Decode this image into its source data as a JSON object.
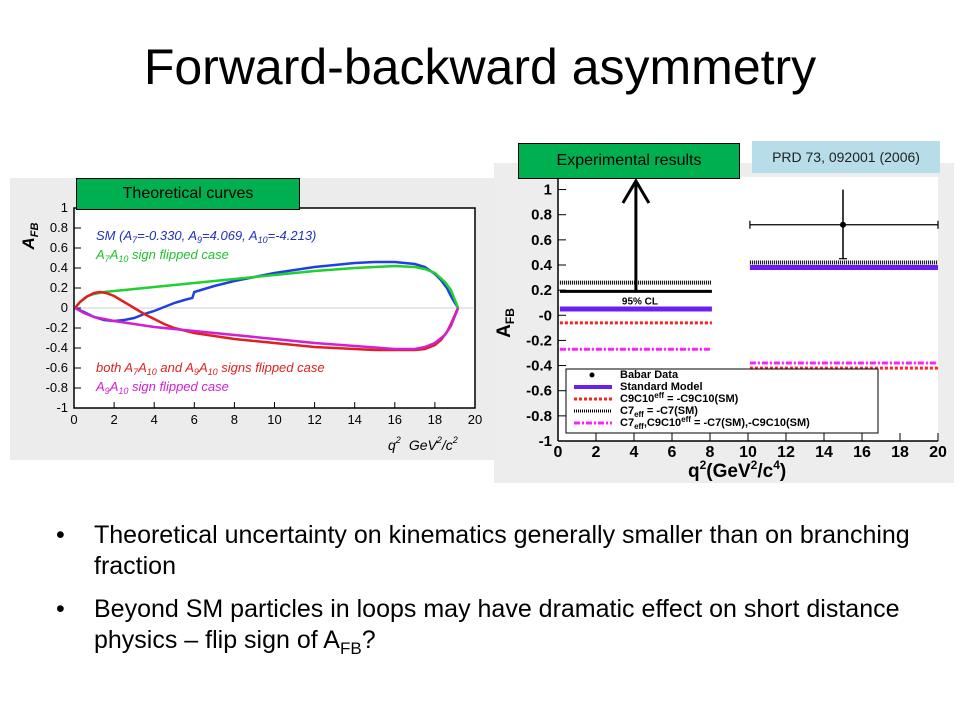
{
  "slide": {
    "title": "Forward-backward asymmetry",
    "label_theoretical": "Theoretical curves",
    "label_experimental": "Experimental results",
    "reference": "PRD 73, 092001 (2006)",
    "bullets": [
      {
        "text": "Theoretical uncertainty on kinematics generally smaller than on branching fraction"
      },
      {
        "text_before_sub": "Beyond SM particles in loops may have dramatic effect on short distance physics – flip sign of A",
        "sub": "FB",
        "text_after_sub": "?"
      }
    ]
  },
  "chart_data": [
    {
      "type": "line",
      "ylabel_main": "A",
      "ylabel_sub": "FB",
      "xlabel_main": "q",
      "xlabel_sup": "2",
      "xlabel_unit_main": "GeV",
      "xlabel_unit_sup": "2",
      "xlabel_unit_tail": "/c",
      "xlabel_unit_sup2": "2",
      "xlim": [
        0,
        20
      ],
      "ylim": [
        -1,
        1
      ],
      "xticks": [
        "0",
        "2",
        "4",
        "6",
        "8",
        "10",
        "12",
        "14",
        "16",
        "18",
        "20"
      ],
      "yticks": [
        "-1",
        "-0.8",
        "-0.6",
        "-0.4",
        "-0.2",
        "0",
        "0.2",
        "0.4",
        "0.6",
        "0.8",
        "1"
      ],
      "legend_top": {
        "sm": {
          "base": "SM (A",
          "a7sub": "7",
          "a7val": "=-0.330, A",
          "a9sub": "9",
          "a9val": "=4.069, A",
          "a10sub": "10",
          "a10val": "=-4.213)"
        },
        "green": {
          "a": "A",
          "s1": "7",
          "mid": "A",
          "s2": "10",
          "tail": " sign flipped case"
        }
      },
      "legend_bottom": {
        "red_line1": {
          "p1": "both A",
          "s1": "7",
          "p2": "A",
          "s2": "10",
          "p3": " and A",
          "s3": "9",
          "p4": "A",
          "s4": "10",
          "p5": " signs flipped case"
        },
        "magenta": {
          "a": "A",
          "s1": "9",
          "mid": "A",
          "s2": "10",
          "tail": " sign flipped case"
        }
      },
      "series": [
        {
          "color": "#2040e0",
          "x": [
            0.05,
            0.5,
            1,
            1.5,
            2,
            2.5,
            3,
            3.5,
            4,
            4.5,
            5,
            5.5,
            5.9,
            6,
            6.5,
            7,
            8,
            9,
            10,
            11,
            12,
            13,
            14,
            15,
            16,
            17,
            17.5,
            18,
            18.3,
            18.6,
            18.8,
            19.0,
            19.1,
            19.15
          ],
          "y": [
            0,
            -0.04,
            -0.09,
            -0.12,
            -0.13,
            -0.12,
            -0.1,
            -0.06,
            -0.03,
            0.01,
            0.05,
            0.08,
            0.1,
            0.16,
            0.19,
            0.22,
            0.27,
            0.31,
            0.35,
            0.38,
            0.41,
            0.43,
            0.45,
            0.46,
            0.46,
            0.44,
            0.41,
            0.34,
            0.28,
            0.2,
            0.12,
            0.05,
            0.02,
            0
          ]
        },
        {
          "color": "#20d030",
          "x": [
            0.05,
            0.3,
            0.7,
            1,
            1.5,
            2,
            3,
            4,
            5,
            6,
            8,
            10,
            12,
            14,
            15,
            16,
            17,
            17.5,
            18,
            18.5,
            18.8,
            19,
            19.1,
            19.15
          ],
          "y": [
            0,
            0.06,
            0.12,
            0.14,
            0.16,
            0.17,
            0.19,
            0.21,
            0.23,
            0.25,
            0.29,
            0.33,
            0.37,
            0.4,
            0.41,
            0.42,
            0.41,
            0.39,
            0.35,
            0.26,
            0.18,
            0.08,
            0.03,
            0
          ]
        },
        {
          "color": "#e02020",
          "x": [
            0.05,
            0.3,
            0.6,
            1,
            1.3,
            1.6,
            2,
            2.5,
            3,
            3.5,
            4,
            4.5,
            5,
            6,
            7,
            8,
            9,
            10,
            11,
            12,
            13,
            14,
            15,
            16,
            17,
            17.5,
            18,
            18.3,
            18.6,
            18.8,
            19.0,
            19.1,
            19.15
          ],
          "y": [
            0,
            0.06,
            0.11,
            0.15,
            0.16,
            0.15,
            0.12,
            0.06,
            0,
            -0.06,
            -0.11,
            -0.16,
            -0.2,
            -0.25,
            -0.28,
            -0.31,
            -0.33,
            -0.35,
            -0.37,
            -0.39,
            -0.4,
            -0.41,
            -0.42,
            -0.42,
            -0.42,
            -0.41,
            -0.37,
            -0.32,
            -0.24,
            -0.16,
            -0.07,
            -0.02,
            0
          ]
        },
        {
          "color": "#d020d0",
          "x": [
            0.05,
            0.5,
            1,
            1.5,
            2,
            3,
            4,
            5,
            6,
            8,
            10,
            12,
            14,
            16,
            17,
            17.5,
            18,
            18.5,
            18.8,
            19,
            19.1,
            19.15
          ],
          "y": [
            0,
            -0.05,
            -0.09,
            -0.11,
            -0.13,
            -0.16,
            -0.19,
            -0.21,
            -0.23,
            -0.27,
            -0.31,
            -0.35,
            -0.38,
            -0.41,
            -0.41,
            -0.39,
            -0.35,
            -0.27,
            -0.18,
            -0.08,
            -0.03,
            0
          ]
        }
      ]
    },
    {
      "type": "bar",
      "ylabel_main": "A",
      "ylabel_sub": "FB",
      "xlabel": {
        "a": "q",
        "b": "2",
        "c": "(GeV",
        "d": "2",
        "e": "/c",
        "f": "4",
        "g": ")"
      },
      "xlim": [
        0,
        20
      ],
      "ylim": [
        -1,
        1.1
      ],
      "xticks": [
        "0",
        "2",
        "4",
        "6",
        "8",
        "10",
        "12",
        "14",
        "16",
        "18",
        "20"
      ],
      "yticks": [
        "-1",
        "-0.8",
        "-0.6",
        "-0.4",
        "-0.2",
        "-0",
        "0.2",
        "0.4",
        "0.6",
        "0.8",
        "1"
      ],
      "cl_label": "95% CL",
      "bins": [
        {
          "x": [
            0.1,
            8.1
          ],
          "sm": 0.05,
          "c9c10": -0.06,
          "c7": 0.26,
          "all": -0.27,
          "arrow_x": 4.1,
          "cl_lower": 0.19
        },
        {
          "x": [
            10.1,
            20
          ],
          "sm": 0.38,
          "c9c10": -0.42,
          "c7": 0.42,
          "all": -0.38
        }
      ],
      "data_point": {
        "x": 15,
        "y": 0.72,
        "x_err": [
          10.1,
          20
        ],
        "y_err": [
          0.45,
          1.0
        ]
      },
      "legend": [
        {
          "main": "Babar Data"
        },
        {
          "main": "Standard Model"
        },
        {
          "a": "C9C10",
          "sup": "eff",
          "b": " = -C9C10(SM)"
        },
        {
          "a": "C7",
          "sub": "eff",
          "b": " = -C7(SM)"
        },
        {
          "a": "C7",
          "sub": "eff",
          "b": ",C9C10",
          "sup": "eff",
          "c": " = -C7(SM),-C9C10(SM)"
        }
      ]
    }
  ]
}
